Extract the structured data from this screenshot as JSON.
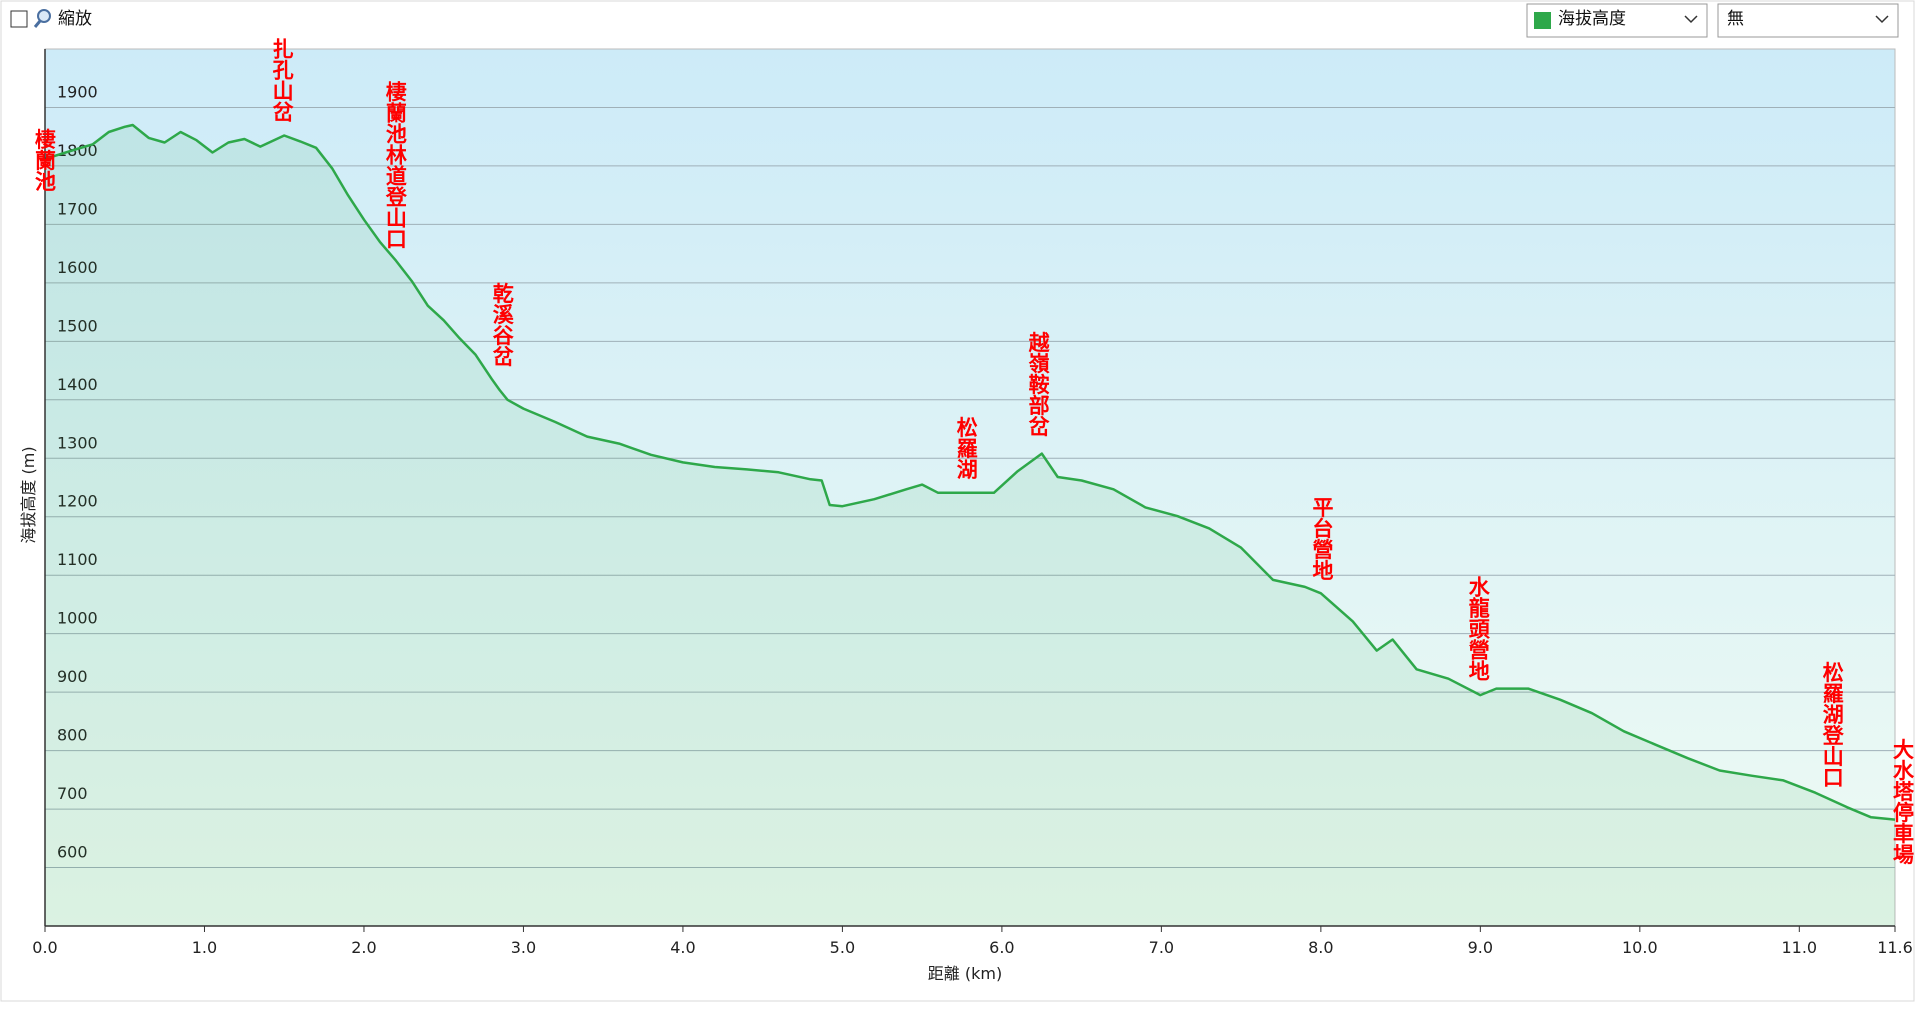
{
  "ui": {
    "zoom_label": "縮放",
    "overlay_option": "無"
  },
  "chart_data": {
    "type": "area",
    "x_label": "距離 (km)",
    "y_label": "海拔高度 (m)",
    "x": [
      0,
      0.2,
      0.3,
      0.4,
      0.5,
      0.55,
      0.65,
      0.75,
      0.85,
      0.95,
      1.05,
      1.15,
      1.25,
      1.35,
      1.5,
      1.6,
      1.7,
      1.8,
      1.9,
      2.0,
      2.1,
      2.2,
      2.3,
      2.4,
      2.5,
      2.6,
      2.7,
      2.8,
      2.85,
      2.9,
      3.0,
      3.2,
      3.4,
      3.6,
      3.8,
      4.0,
      4.2,
      4.4,
      4.6,
      4.8,
      4.87,
      4.92,
      5.0,
      5.2,
      5.4,
      5.5,
      5.6,
      5.8,
      5.95,
      6.1,
      6.25,
      6.35,
      6.5,
      6.7,
      6.9,
      7.1,
      7.3,
      7.5,
      7.7,
      7.9,
      8.0,
      8.2,
      8.35,
      8.45,
      8.6,
      8.8,
      9.0,
      9.1,
      9.3,
      9.5,
      9.7,
      9.9,
      10.1,
      10.3,
      10.5,
      10.7,
      10.9,
      11.1,
      11.3,
      11.45,
      11.6
    ],
    "series": [
      {
        "name": "海拔高度",
        "color": "#2ea84a",
        "values": [
          1812,
          1829,
          1837,
          1858,
          1867,
          1870,
          1848,
          1840,
          1858,
          1844,
          1823,
          1840,
          1846,
          1833,
          1852,
          1842,
          1831,
          1796,
          1750,
          1708,
          1670,
          1638,
          1603,
          1561,
          1536,
          1505,
          1477,
          1436,
          1417,
          1400,
          1385,
          1362,
          1337,
          1325,
          1306,
          1293,
          1285,
          1281,
          1276,
          1264,
          1262,
          1220,
          1218,
          1230,
          1247,
          1255,
          1241,
          1241,
          1241,
          1278,
          1308,
          1268,
          1262,
          1247,
          1216,
          1201,
          1180,
          1147,
          1092,
          1080,
          1069,
          1021,
          971,
          990,
          939,
          923,
          895,
          906,
          906,
          887,
          864,
          833,
          810,
          787,
          766,
          757,
          749,
          728,
          703,
          686,
          682
        ]
      }
    ],
    "xlim": [
      0,
      11.6
    ],
    "xticks": [
      {
        "value": 0,
        "label": "0.0"
      },
      {
        "value": 1,
        "label": "1.0"
      },
      {
        "value": 2,
        "label": "2.0"
      },
      {
        "value": 3,
        "label": "3.0"
      },
      {
        "value": 4,
        "label": "4.0"
      },
      {
        "value": 5,
        "label": "5.0"
      },
      {
        "value": 6,
        "label": "6.0"
      },
      {
        "value": 7,
        "label": "7.0"
      },
      {
        "value": 8,
        "label": "8.0"
      },
      {
        "value": 9,
        "label": "9.0"
      },
      {
        "value": 10,
        "label": "10.0"
      },
      {
        "value": 11,
        "label": "11.0"
      },
      11.6
    ],
    "ylim": [
      500,
      2000
    ],
    "yticks": [
      600,
      700,
      800,
      900,
      1000,
      1100,
      1200,
      1300,
      1400,
      1500,
      1600,
      1700,
      1800,
      1900
    ],
    "grid": true,
    "annotations": [
      {
        "text": "棲蘭池",
        "x": 0,
        "y": 1756
      },
      {
        "text": "扎孔山岔",
        "x": 1.49,
        "y": 1875
      },
      {
        "text": "棲蘭池林道登山口",
        "x": 2.2,
        "y": 1658
      },
      {
        "text": "乾溪谷岔",
        "x": 2.87,
        "y": 1457
      },
      {
        "text": "松羅湖",
        "x": 5.78,
        "y": 1264
      },
      {
        "text": "越嶺鞍部岔",
        "x": 6.23,
        "y": 1337
      },
      {
        "text": "平台營地",
        "x": 8.01,
        "y": 1091
      },
      {
        "text": "水龍頭營地",
        "x": 8.99,
        "y": 919
      },
      {
        "text": "松羅湖登山口",
        "x": 11.21,
        "y": 737
      },
      {
        "text": "大水塔停車場",
        "x": 11.65,
        "y": 605
      }
    ]
  }
}
